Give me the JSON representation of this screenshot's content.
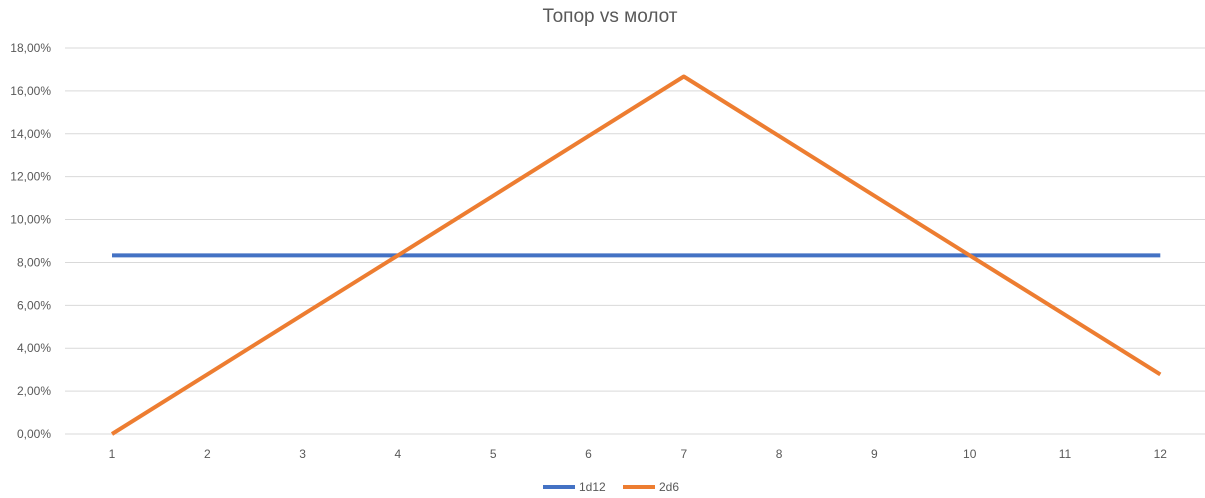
{
  "chart_data": {
    "type": "line",
    "title": "Топор vs молот",
    "xlabel": "",
    "ylabel": "",
    "categories": [
      "1",
      "2",
      "3",
      "4",
      "5",
      "6",
      "7",
      "8",
      "9",
      "10",
      "11",
      "12"
    ],
    "ylim": [
      0,
      0.18
    ],
    "yticks": [
      0,
      0.02,
      0.04,
      0.06,
      0.08,
      0.1,
      0.12,
      0.14,
      0.16,
      0.18
    ],
    "ytick_labels": [
      "0,00%",
      "2,00%",
      "4,00%",
      "6,00%",
      "8,00%",
      "10,00%",
      "12,00%",
      "14,00%",
      "16,00%",
      "18,00%"
    ],
    "grid": true,
    "legend": "bottom",
    "series": [
      {
        "name": "1d12",
        "color": "#4472c4",
        "values": [
          0.0833,
          0.0833,
          0.0833,
          0.0833,
          0.0833,
          0.0833,
          0.0833,
          0.0833,
          0.0833,
          0.0833,
          0.0833,
          0.0833
        ]
      },
      {
        "name": "2d6",
        "color": "#ed7d31",
        "values": [
          0,
          0.0278,
          0.0556,
          0.0833,
          0.1111,
          0.1389,
          0.1667,
          0.1389,
          0.1111,
          0.0833,
          0.0556,
          0.0278
        ]
      }
    ]
  }
}
